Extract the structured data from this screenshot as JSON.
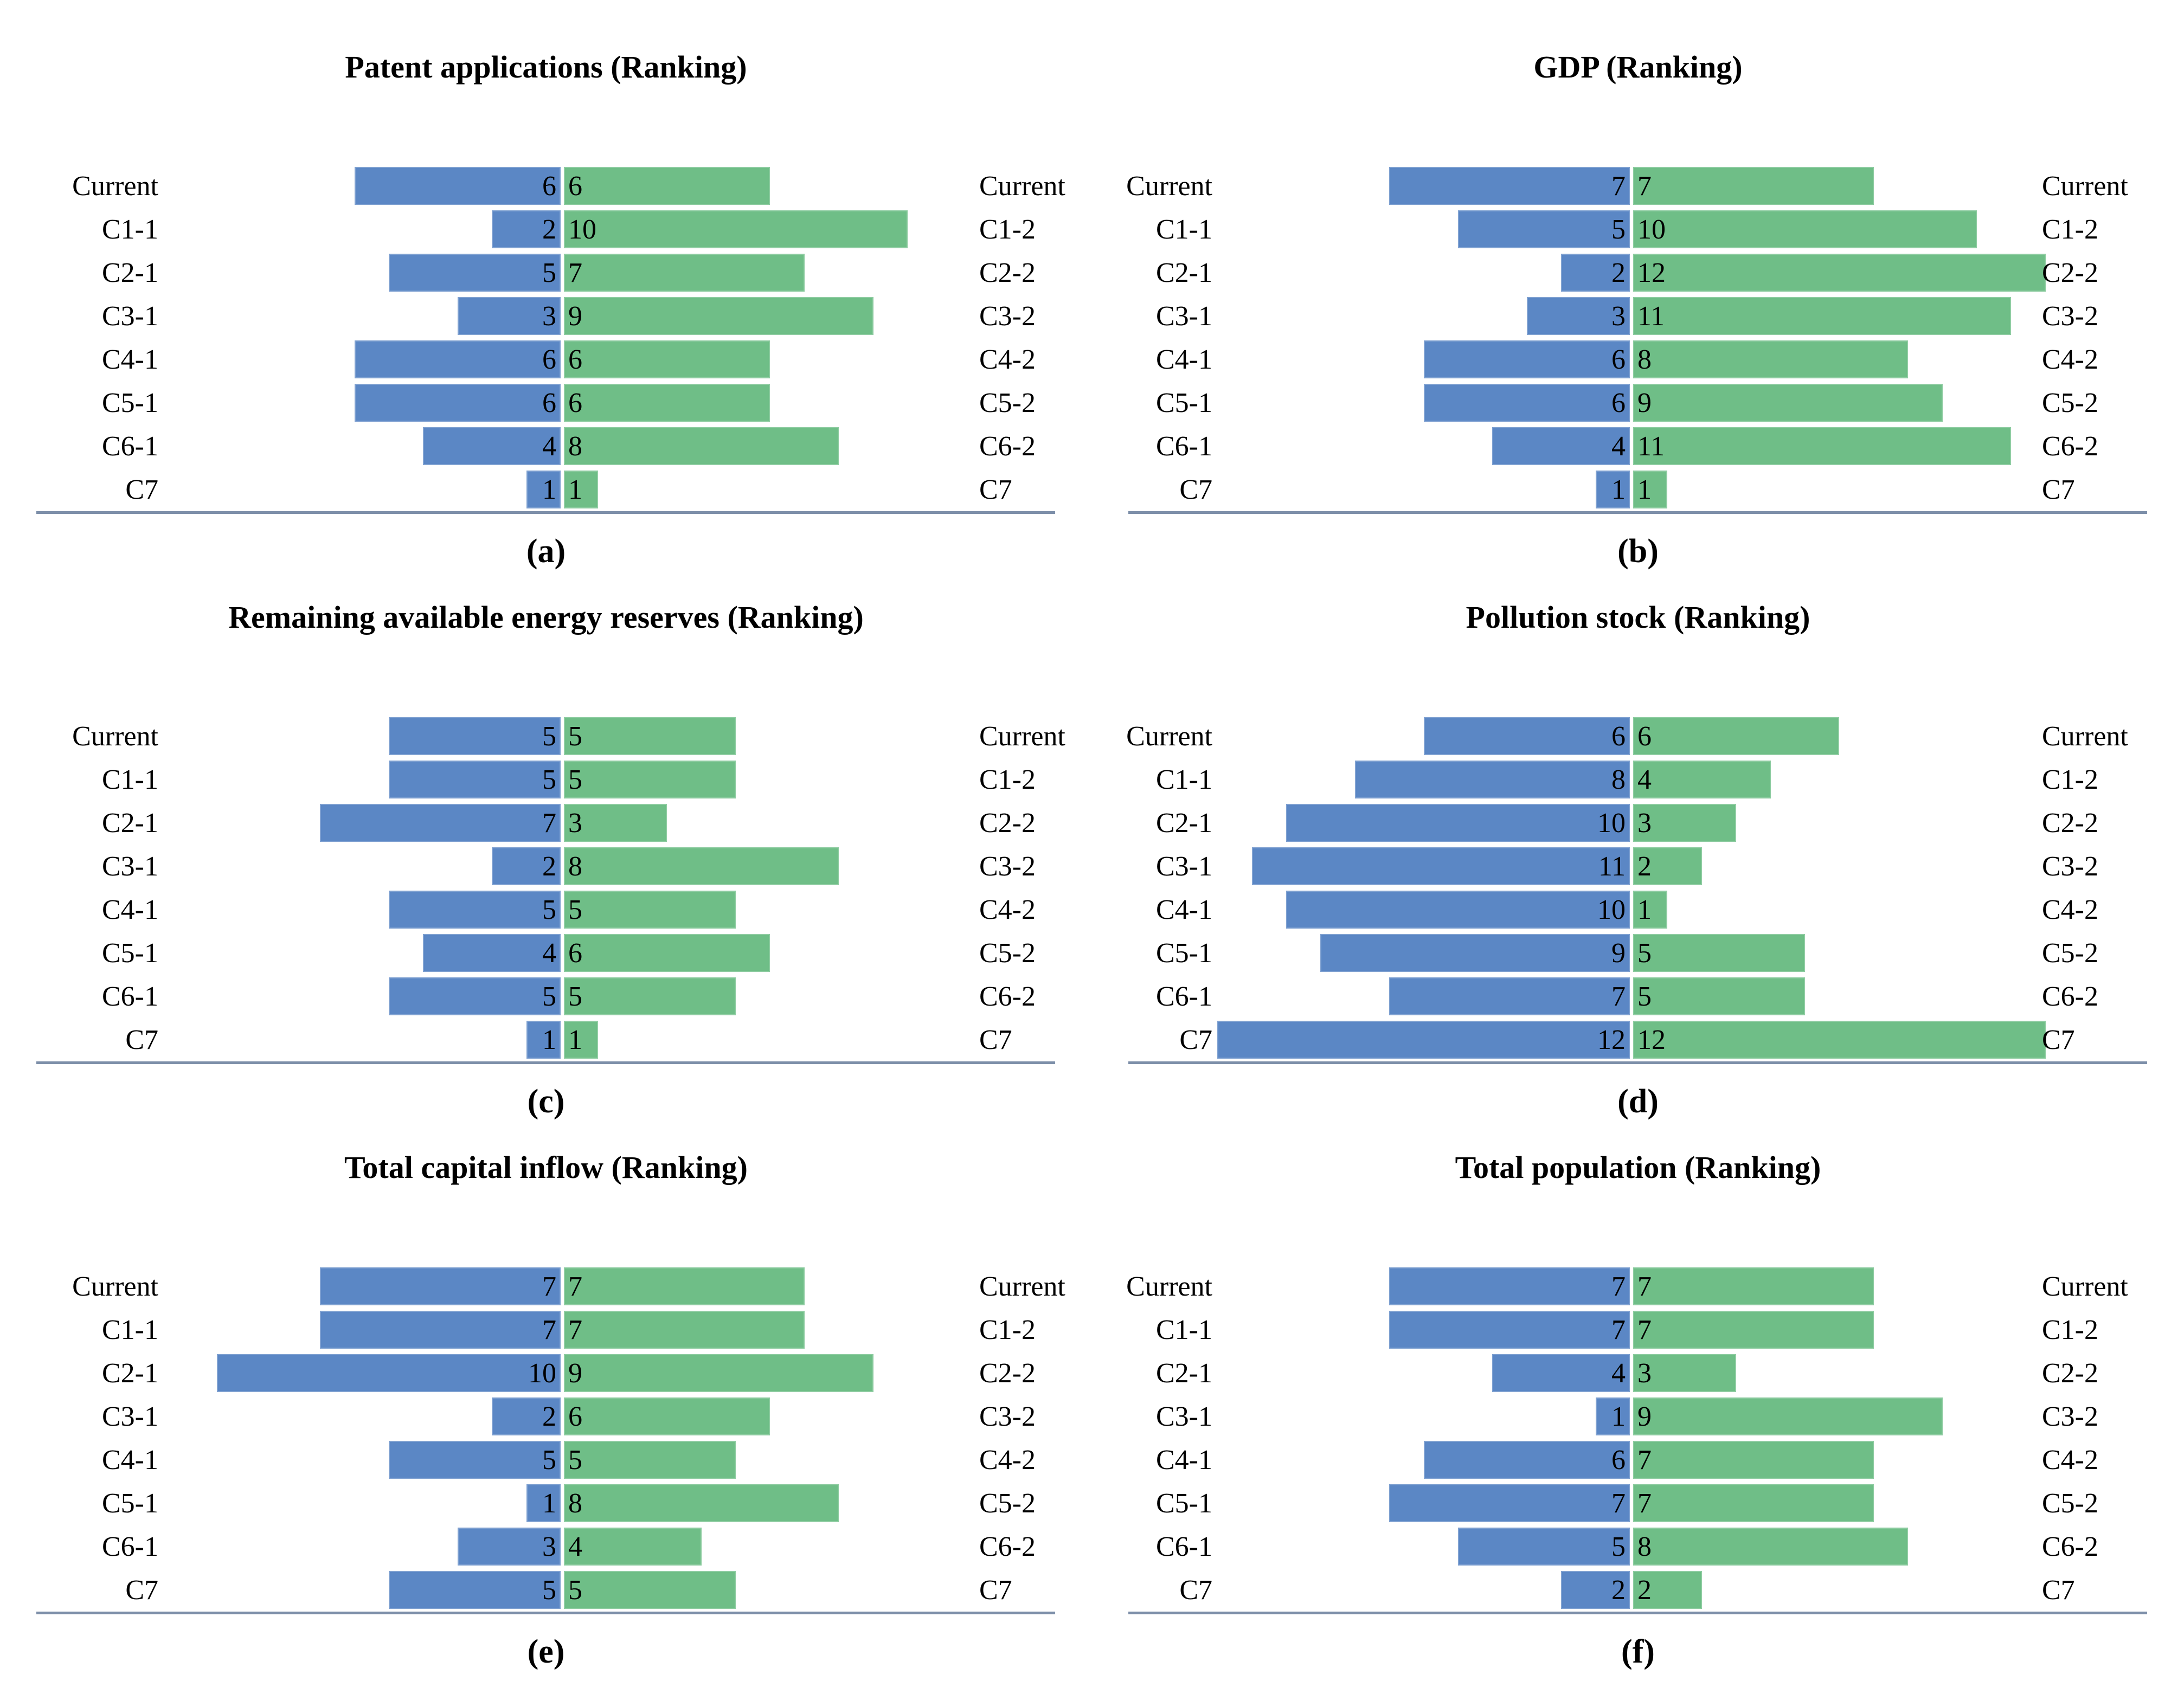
{
  "colors": {
    "bar_left_blue": "#5B87C5",
    "bar_right_green": "#6FBE87",
    "axis_line": "#7D8FA9",
    "text": "#000000",
    "background": "#FFFFFF"
  },
  "chart_data": [
    {
      "type": "bar",
      "subtype": "diverging-horizontal-tornado",
      "title": "Patent applications (Ranking)",
      "panel_caption": "(a)",
      "legend": "none",
      "grid": false,
      "value_range": [
        0,
        12
      ],
      "categories_left": [
        "Current",
        "C1-1",
        "C2-1",
        "C3-1",
        "C4-1",
        "C5-1",
        "C6-1",
        "C7"
      ],
      "categories_right": [
        "Current",
        "C1-2",
        "C2-2",
        "C3-2",
        "C4-2",
        "C5-2",
        "C6-2",
        "C7"
      ],
      "series": [
        {
          "name": "left_blue",
          "values": [
            6,
            2,
            5,
            3,
            6,
            6,
            4,
            1
          ]
        },
        {
          "name": "right_green",
          "values": [
            6,
            10,
            7,
            9,
            6,
            6,
            8,
            1
          ]
        }
      ]
    },
    {
      "type": "bar",
      "subtype": "diverging-horizontal-tornado",
      "title": "GDP (Ranking)",
      "panel_caption": "(b)",
      "legend": "none",
      "grid": false,
      "value_range": [
        0,
        12
      ],
      "categories_left": [
        "Current",
        "C1-1",
        "C2-1",
        "C3-1",
        "C4-1",
        "C5-1",
        "C6-1",
        "C7"
      ],
      "categories_right": [
        "Current",
        "C1-2",
        "C2-2",
        "C3-2",
        "C4-2",
        "C5-2",
        "C6-2",
        "C7"
      ],
      "series": [
        {
          "name": "left_blue",
          "values": [
            7,
            5,
            2,
            3,
            6,
            6,
            4,
            1
          ]
        },
        {
          "name": "right_green",
          "values": [
            7,
            10,
            12,
            11,
            8,
            9,
            11,
            1
          ]
        }
      ]
    },
    {
      "type": "bar",
      "subtype": "diverging-horizontal-tornado",
      "title": "Remaining available energy reserves (Ranking)",
      "panel_caption": "(c)",
      "legend": "none",
      "grid": false,
      "value_range": [
        0,
        12
      ],
      "categories_left": [
        "Current",
        "C1-1",
        "C2-1",
        "C3-1",
        "C4-1",
        "C5-1",
        "C6-1",
        "C7"
      ],
      "categories_right": [
        "Current",
        "C1-2",
        "C2-2",
        "C3-2",
        "C4-2",
        "C5-2",
        "C6-2",
        "C7"
      ],
      "series": [
        {
          "name": "left_blue",
          "values": [
            5,
            5,
            7,
            2,
            5,
            4,
            5,
            1
          ]
        },
        {
          "name": "right_green",
          "values": [
            5,
            5,
            3,
            8,
            5,
            6,
            5,
            1
          ]
        }
      ]
    },
    {
      "type": "bar",
      "subtype": "diverging-horizontal-tornado",
      "title": "Pollution stock (Ranking)",
      "panel_caption": "(d)",
      "legend": "none",
      "grid": false,
      "value_range": [
        0,
        12
      ],
      "categories_left": [
        "Current",
        "C1-1",
        "C2-1",
        "C3-1",
        "C4-1",
        "C5-1",
        "C6-1",
        "C7"
      ],
      "categories_right": [
        "Current",
        "C1-2",
        "C2-2",
        "C3-2",
        "C4-2",
        "C5-2",
        "C6-2",
        "C7"
      ],
      "series": [
        {
          "name": "left_blue",
          "values": [
            6,
            8,
            10,
            11,
            10,
            9,
            7,
            12
          ]
        },
        {
          "name": "right_green",
          "values": [
            6,
            4,
            3,
            2,
            1,
            5,
            5,
            12
          ]
        }
      ]
    },
    {
      "type": "bar",
      "subtype": "diverging-horizontal-tornado",
      "title": "Total capital inflow (Ranking)",
      "panel_caption": "(e)",
      "legend": "none",
      "grid": false,
      "value_range": [
        0,
        12
      ],
      "categories_left": [
        "Current",
        "C1-1",
        "C2-1",
        "C3-1",
        "C4-1",
        "C5-1",
        "C6-1",
        "C7"
      ],
      "categories_right": [
        "Current",
        "C1-2",
        "C2-2",
        "C3-2",
        "C4-2",
        "C5-2",
        "C6-2",
        "C7"
      ],
      "series": [
        {
          "name": "left_blue",
          "values": [
            7,
            7,
            10,
            2,
            5,
            1,
            3,
            5
          ]
        },
        {
          "name": "right_green",
          "values": [
            7,
            7,
            9,
            6,
            5,
            8,
            4,
            5
          ]
        }
      ]
    },
    {
      "type": "bar",
      "subtype": "diverging-horizontal-tornado",
      "title": "Total population (Ranking)",
      "panel_caption": "(f)",
      "legend": "none",
      "grid": false,
      "value_range": [
        0,
        12
      ],
      "categories_left": [
        "Current",
        "C1-1",
        "C2-1",
        "C3-1",
        "C4-1",
        "C5-1",
        "C6-1",
        "C7"
      ],
      "categories_right": [
        "Current",
        "C1-2",
        "C2-2",
        "C3-2",
        "C4-2",
        "C5-2",
        "C6-2",
        "C7"
      ],
      "series": [
        {
          "name": "left_blue",
          "values": [
            7,
            7,
            4,
            1,
            6,
            7,
            5,
            2
          ]
        },
        {
          "name": "right_green",
          "values": [
            7,
            7,
            3,
            9,
            7,
            7,
            8,
            2
          ]
        }
      ]
    }
  ]
}
